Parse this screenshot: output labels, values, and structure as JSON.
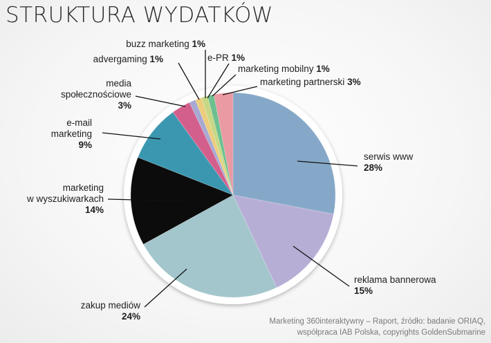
{
  "page": {
    "title": "STRUKTURA WYDATKÓW",
    "source_line1": "Marketing 360interaktywny – Raport, źródło: badanie ORIAQ,",
    "source_line2": "współpraca IAB Polska, copyrights GoldenSubmarine"
  },
  "chart_data": {
    "type": "pie",
    "title": "STRUKTURA WYDATKÓW",
    "unit": "%",
    "slices": [
      {
        "label": "serwis www",
        "label_lines": [
          "serwis www"
        ],
        "value": 28,
        "color": "#86a8c8"
      },
      {
        "label": "reklama bannerowa",
        "label_lines": [
          "reklama bannerowa"
        ],
        "value": 15,
        "color": "#b7aed6"
      },
      {
        "label": "zakup mediów",
        "label_lines": [
          "zakup mediów"
        ],
        "value": 24,
        "color": "#a3c6cc"
      },
      {
        "label": "marketing w wyszukiwarkach",
        "label_lines": [
          "marketing",
          "w wyszukiwarkach"
        ],
        "value": 14,
        "color": "#0c0c0c"
      },
      {
        "label": "e-mail marketing",
        "label_lines": [
          "e-mail",
          "marketing"
        ],
        "value": 9,
        "color": "#3b97b0"
      },
      {
        "label": "media społecznościowe",
        "label_lines": [
          "media",
          "społecznościowe"
        ],
        "value": 3,
        "color": "#d35f8d"
      },
      {
        "label": "advergaming",
        "label_lines": [
          "advergaming"
        ],
        "value": 1,
        "color": "#a7a9d3"
      },
      {
        "label": "buzz marketing",
        "label_lines": [
          "buzz marketing"
        ],
        "value": 1,
        "color": "#eccd7c"
      },
      {
        "label": "e-PR",
        "label_lines": [
          "e-PR"
        ],
        "value": 1,
        "color": "#c6d886"
      },
      {
        "label": "marketing mobilny",
        "label_lines": [
          "marketing mobilny"
        ],
        "value": 1,
        "color": "#6dbf90"
      },
      {
        "label": "marketing partnerski",
        "label_lines": [
          "marketing partnerski"
        ],
        "value": 3,
        "color": "#e99aa2"
      }
    ]
  }
}
